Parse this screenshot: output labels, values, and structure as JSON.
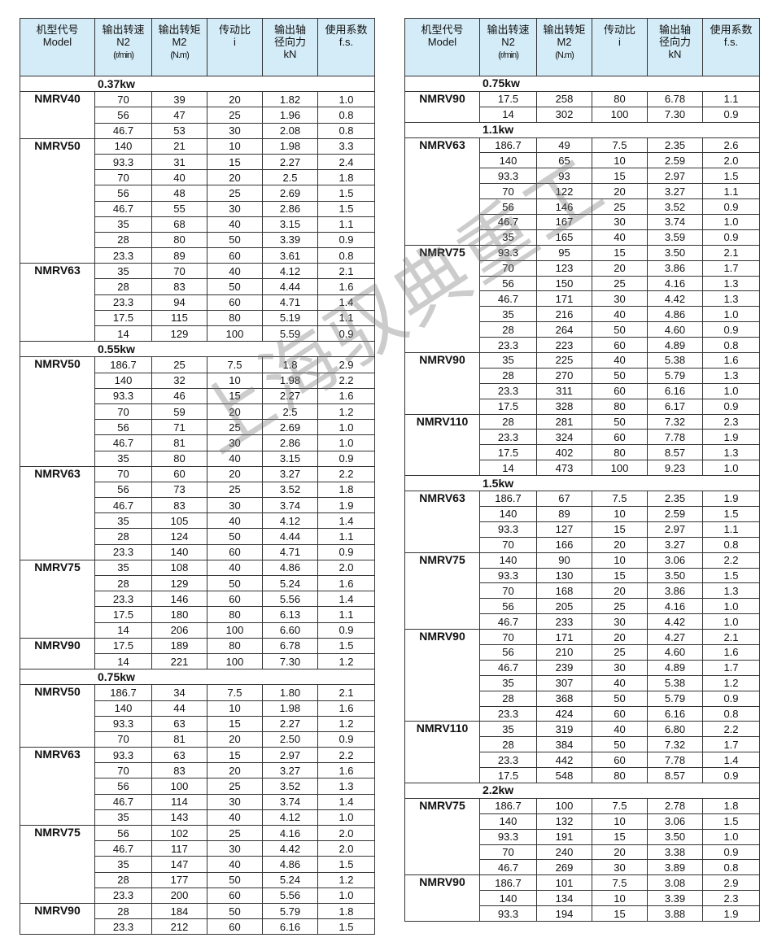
{
  "header": {
    "model": [
      "机型代号",
      "Model"
    ],
    "n2": [
      "输出转速",
      "N2",
      "(r/min)"
    ],
    "m2": [
      "输出转矩",
      "M2",
      "(N.m)"
    ],
    "ratio": [
      "传动比",
      "i"
    ],
    "radial": [
      "输出轴",
      "径向力",
      "kN"
    ],
    "fs": [
      "使用系数",
      "f.s."
    ]
  },
  "watermark": "上海驭典重工",
  "left": [
    {
      "power": "0.37kw",
      "groups": [
        {
          "model": "NMRV40",
          "rows": [
            [
              "70",
              "39",
              "20",
              "1.82",
              "1.0"
            ],
            [
              "56",
              "47",
              "25",
              "1.96",
              "0.8"
            ],
            [
              "46.7",
              "53",
              "30",
              "2.08",
              "0.8"
            ]
          ]
        },
        {
          "model": "NMRV50",
          "rows": [
            [
              "140",
              "21",
              "10",
              "1.98",
              "3.3"
            ],
            [
              "93.3",
              "31",
              "15",
              "2.27",
              "2.4"
            ],
            [
              "70",
              "40",
              "20",
              "2.5",
              "1.8"
            ],
            [
              "56",
              "48",
              "25",
              "2.69",
              "1.5"
            ],
            [
              "46.7",
              "55",
              "30",
              "2.86",
              "1.5"
            ],
            [
              "35",
              "68",
              "40",
              "3.15",
              "1.1"
            ],
            [
              "28",
              "80",
              "50",
              "3.39",
              "0.9"
            ],
            [
              "23.3",
              "89",
              "60",
              "3.61",
              "0.8"
            ]
          ]
        },
        {
          "model": "NMRV63",
          "rows": [
            [
              "35",
              "70",
              "40",
              "4.12",
              "2.1"
            ],
            [
              "28",
              "83",
              "50",
              "4.44",
              "1.6"
            ],
            [
              "23.3",
              "94",
              "60",
              "4.71",
              "1.4"
            ],
            [
              "17.5",
              "115",
              "80",
              "5.19",
              "1.1"
            ],
            [
              "14",
              "129",
              "100",
              "5.59",
              "0.9"
            ]
          ]
        }
      ]
    },
    {
      "power": "0.55kw",
      "groups": [
        {
          "model": "NMRV50",
          "rows": [
            [
              "186.7",
              "25",
              "7.5",
              "1.8",
              "2.9"
            ],
            [
              "140",
              "32",
              "10",
              "1.98",
              "2.2"
            ],
            [
              "93.3",
              "46",
              "15",
              "2.27",
              "1.6"
            ],
            [
              "70",
              "59",
              "20",
              "2.5",
              "1.2"
            ],
            [
              "56",
              "71",
              "25",
              "2.69",
              "1.0"
            ],
            [
              "46.7",
              "81",
              "30",
              "2.86",
              "1.0"
            ],
            [
              "35",
              "80",
              "40",
              "3.15",
              "0.9"
            ]
          ]
        },
        {
          "model": "NMRV63",
          "rows": [
            [
              "70",
              "60",
              "20",
              "3.27",
              "2.2"
            ],
            [
              "56",
              "73",
              "25",
              "3.52",
              "1.8"
            ],
            [
              "46.7",
              "83",
              "30",
              "3.74",
              "1.9"
            ],
            [
              "35",
              "105",
              "40",
              "4.12",
              "1.4"
            ],
            [
              "28",
              "124",
              "50",
              "4.44",
              "1.1"
            ],
            [
              "23.3",
              "140",
              "60",
              "4.71",
              "0.9"
            ]
          ]
        },
        {
          "model": "NMRV75",
          "rows": [
            [
              "35",
              "108",
              "40",
              "4.86",
              "2.0"
            ],
            [
              "28",
              "129",
              "50",
              "5.24",
              "1.6"
            ],
            [
              "23.3",
              "146",
              "60",
              "5.56",
              "1.4"
            ],
            [
              "17.5",
              "180",
              "80",
              "6.13",
              "1.1"
            ],
            [
              "14",
              "206",
              "100",
              "6.60",
              "0.9"
            ]
          ]
        },
        {
          "model": "NMRV90",
          "rows": [
            [
              "17.5",
              "189",
              "80",
              "6.78",
              "1.5"
            ],
            [
              "14",
              "221",
              "100",
              "7.30",
              "1.2"
            ]
          ]
        }
      ]
    },
    {
      "power": "0.75kw",
      "groups": [
        {
          "model": "NMRV50",
          "rows": [
            [
              "186.7",
              "34",
              "7.5",
              "1.80",
              "2.1"
            ],
            [
              "140",
              "44",
              "10",
              "1.98",
              "1.6"
            ],
            [
              "93.3",
              "63",
              "15",
              "2.27",
              "1.2"
            ],
            [
              "70",
              "81",
              "20",
              "2.50",
              "0.9"
            ]
          ]
        },
        {
          "model": "NMRV63",
          "rows": [
            [
              "93.3",
              "63",
              "15",
              "2.97",
              "2.2"
            ],
            [
              "70",
              "83",
              "20",
              "3.27",
              "1.6"
            ],
            [
              "56",
              "100",
              "25",
              "3.52",
              "1.3"
            ],
            [
              "46.7",
              "114",
              "30",
              "3.74",
              "1.4"
            ],
            [
              "35",
              "143",
              "40",
              "4.12",
              "1.0"
            ]
          ]
        },
        {
          "model": "NMRV75",
          "rows": [
            [
              "56",
              "102",
              "25",
              "4.16",
              "2.0"
            ],
            [
              "46.7",
              "117",
              "30",
              "4.42",
              "2.0"
            ],
            [
              "35",
              "147",
              "40",
              "4.86",
              "1.5"
            ],
            [
              "28",
              "177",
              "50",
              "5.24",
              "1.2"
            ],
            [
              "23.3",
              "200",
              "60",
              "5.56",
              "1.0"
            ]
          ]
        },
        {
          "model": "NMRV90",
          "rows": [
            [
              "28",
              "184",
              "50",
              "5.79",
              "1.8"
            ],
            [
              "23.3",
              "212",
              "60",
              "6.16",
              "1.5"
            ]
          ]
        }
      ]
    }
  ],
  "right": [
    {
      "power": "0.75kw",
      "groups": [
        {
          "model": "NMRV90",
          "rows": [
            [
              "17.5",
              "258",
              "80",
              "6.78",
              "1.1"
            ],
            [
              "14",
              "302",
              "100",
              "7.30",
              "0.9"
            ]
          ]
        }
      ]
    },
    {
      "power": "1.1kw",
      "groups": [
        {
          "model": "NMRV63",
          "rows": [
            [
              "186.7",
              "49",
              "7.5",
              "2.35",
              "2.6"
            ],
            [
              "140",
              "65",
              "10",
              "2.59",
              "2.0"
            ],
            [
              "93.3",
              "93",
              "15",
              "2.97",
              "1.5"
            ],
            [
              "70",
              "122",
              "20",
              "3.27",
              "1.1"
            ],
            [
              "56",
              "146",
              "25",
              "3.52",
              "0.9"
            ],
            [
              "46.7",
              "167",
              "30",
              "3.74",
              "1.0"
            ],
            [
              "35",
              "165",
              "40",
              "3.59",
              "0.9"
            ]
          ]
        },
        {
          "model": "NMRV75",
          "rows": [
            [
              "93.3",
              "95",
              "15",
              "3.50",
              "2.1"
            ],
            [
              "70",
              "123",
              "20",
              "3.86",
              "1.7"
            ],
            [
              "56",
              "150",
              "25",
              "4.16",
              "1.3"
            ],
            [
              "46.7",
              "171",
              "30",
              "4.42",
              "1.3"
            ],
            [
              "35",
              "216",
              "40",
              "4.86",
              "1.0"
            ],
            [
              "28",
              "264",
              "50",
              "4.60",
              "0.9"
            ],
            [
              "23.3",
              "223",
              "60",
              "4.89",
              "0.8"
            ]
          ]
        },
        {
          "model": "NMRV90",
          "rows": [
            [
              "35",
              "225",
              "40",
              "5.38",
              "1.6"
            ],
            [
              "28",
              "270",
              "50",
              "5.79",
              "1.3"
            ],
            [
              "23.3",
              "311",
              "60",
              "6.16",
              "1.0"
            ],
            [
              "17.5",
              "328",
              "80",
              "6.17",
              "0.9"
            ]
          ]
        },
        {
          "model": "NMRV110",
          "rows": [
            [
              "28",
              "281",
              "50",
              "7.32",
              "2.3"
            ],
            [
              "23.3",
              "324",
              "60",
              "7.78",
              "1.9"
            ],
            [
              "17.5",
              "402",
              "80",
              "8.57",
              "1.3"
            ],
            [
              "14",
              "473",
              "100",
              "9.23",
              "1.0"
            ]
          ]
        }
      ]
    },
    {
      "power": "1.5kw",
      "groups": [
        {
          "model": "NMRV63",
          "rows": [
            [
              "186.7",
              "67",
              "7.5",
              "2.35",
              "1.9"
            ],
            [
              "140",
              "89",
              "10",
              "2.59",
              "1.5"
            ],
            [
              "93.3",
              "127",
              "15",
              "2.97",
              "1.1"
            ],
            [
              "70",
              "166",
              "20",
              "3.27",
              "0.8"
            ]
          ]
        },
        {
          "model": "NMRV75",
          "rows": [
            [
              "140",
              "90",
              "10",
              "3.06",
              "2.2"
            ],
            [
              "93.3",
              "130",
              "15",
              "3.50",
              "1.5"
            ],
            [
              "70",
              "168",
              "20",
              "3.86",
              "1.3"
            ],
            [
              "56",
              "205",
              "25",
              "4.16",
              "1.0"
            ],
            [
              "46.7",
              "233",
              "30",
              "4.42",
              "1.0"
            ]
          ]
        },
        {
          "model": "NMRV90",
          "rows": [
            [
              "70",
              "171",
              "20",
              "4.27",
              "2.1"
            ],
            [
              "56",
              "210",
              "25",
              "4.60",
              "1.6"
            ],
            [
              "46.7",
              "239",
              "30",
              "4.89",
              "1.7"
            ],
            [
              "35",
              "307",
              "40",
              "5.38",
              "1.2"
            ],
            [
              "28",
              "368",
              "50",
              "5.79",
              "0.9"
            ],
            [
              "23.3",
              "424",
              "60",
              "6.16",
              "0.8"
            ]
          ]
        },
        {
          "model": "NMRV110",
          "rows": [
            [
              "35",
              "319",
              "40",
              "6.80",
              "2.2"
            ],
            [
              "28",
              "384",
              "50",
              "7.32",
              "1.7"
            ],
            [
              "23.3",
              "442",
              "60",
              "7.78",
              "1.4"
            ],
            [
              "17.5",
              "548",
              "80",
              "8.57",
              "0.9"
            ]
          ]
        }
      ]
    },
    {
      "power": "2.2kw",
      "groups": [
        {
          "model": "NMRV75",
          "rows": [
            [
              "186.7",
              "100",
              "7.5",
              "2.78",
              "1.8"
            ],
            [
              "140",
              "132",
              "10",
              "3.06",
              "1.5"
            ],
            [
              "93.3",
              "191",
              "15",
              "3.50",
              "1.0"
            ],
            [
              "70",
              "240",
              "20",
              "3.38",
              "0.9"
            ],
            [
              "46.7",
              "269",
              "30",
              "3.89",
              "0.8"
            ]
          ]
        },
        {
          "model": "NMRV90",
          "rows": [
            [
              "186.7",
              "101",
              "7.5",
              "3.08",
              "2.9"
            ],
            [
              "140",
              "134",
              "10",
              "3.39",
              "2.3"
            ],
            [
              "93.3",
              "194",
              "15",
              "3.88",
              "1.9"
            ]
          ]
        }
      ]
    }
  ]
}
